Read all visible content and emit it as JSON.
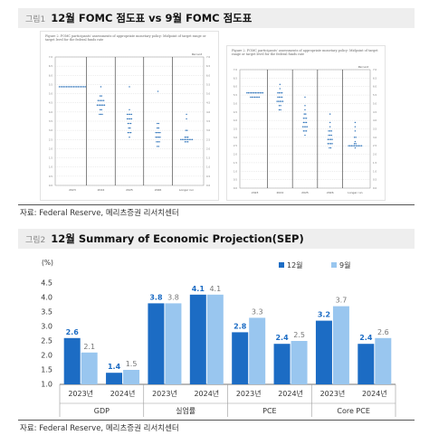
{
  "figure1": {
    "label": "그림1",
    "title": "12월 FOMC 점도표 vs 9월 FOMC 점도표",
    "left_panel": {
      "caption": "Figure 2. FOMC participants' assessments of appropriate monetary policy: Midpoint of target range or target level for the federal funds rate",
      "x_ticks": [
        "2023",
        "2024",
        "2025",
        "2026",
        "Longer run"
      ],
      "y_axis_title": "Percent"
    },
    "right_panel": {
      "caption": "Figure 2. FOMC participants' assessments of appropriate monetary policy: Midpoint of target range or target level for the federal funds rate",
      "x_ticks": [
        "2023",
        "2024",
        "2025",
        "2026",
        "Longer run"
      ],
      "y_axis_title": "Percent"
    },
    "source": "자료: Federal Reserve, 메리츠증권 리서치센터"
  },
  "figure2": {
    "label": "그림2",
    "title": "12월 Summary of Economic Projection(SEP)",
    "source": "자료: Federal Reserve, 메리츠증권 리서치센터"
  },
  "colors": {
    "dec": "#1c6cc4",
    "sep": "#99c6ef",
    "grid": "#bfbfbf",
    "dots": "#2a70b8"
  },
  "chart_data": [
    {
      "type": "scatter",
      "title": "Figure 2. FOMC participants' assessments of appropriate monetary policy (December)",
      "categories": [
        "2023",
        "2024",
        "2025",
        "2026",
        "Longer run"
      ],
      "ylabel": "Percent",
      "points": [
        {
          "x": "2023",
          "y": 5.375,
          "count": 19
        },
        {
          "x": "2024",
          "y": 5.375,
          "count": 1
        },
        {
          "x": "2024",
          "y": 4.875,
          "count": 2
        },
        {
          "x": "2024",
          "y": 4.625,
          "count": 5
        },
        {
          "x": "2024",
          "y": 4.375,
          "count": 6
        },
        {
          "x": "2024",
          "y": 4.125,
          "count": 2
        },
        {
          "x": "2024",
          "y": 3.875,
          "count": 3
        },
        {
          "x": "2025",
          "y": 5.375,
          "count": 1
        },
        {
          "x": "2025",
          "y": 4.125,
          "count": 1
        },
        {
          "x": "2025",
          "y": 3.875,
          "count": 4
        },
        {
          "x": "2025",
          "y": 3.625,
          "count": 4
        },
        {
          "x": "2025",
          "y": 3.375,
          "count": 3
        },
        {
          "x": "2025",
          "y": 3.125,
          "count": 2
        },
        {
          "x": "2025",
          "y": 2.875,
          "count": 3
        },
        {
          "x": "2025",
          "y": 2.625,
          "count": 1
        },
        {
          "x": "2026",
          "y": 5.125,
          "count": 1
        },
        {
          "x": "2026",
          "y": 3.375,
          "count": 2
        },
        {
          "x": "2026",
          "y": 3.125,
          "count": 2
        },
        {
          "x": "2026",
          "y": 2.875,
          "count": 4
        },
        {
          "x": "2026",
          "y": 2.625,
          "count": 4
        },
        {
          "x": "2026",
          "y": 2.375,
          "count": 3
        },
        {
          "x": "2026",
          "y": 2.125,
          "count": 2
        },
        {
          "x": "Longer run",
          "y": 3.875,
          "count": 1
        },
        {
          "x": "Longer run",
          "y": 3.625,
          "count": 1
        },
        {
          "x": "Longer run",
          "y": 3.0,
          "count": 2
        },
        {
          "x": "Longer run",
          "y": 2.625,
          "count": 3
        },
        {
          "x": "Longer run",
          "y": 2.5,
          "count": 9
        },
        {
          "x": "Longer run",
          "y": 2.375,
          "count": 3
        }
      ]
    },
    {
      "type": "scatter",
      "title": "Figure 2. FOMC participants' assessments of appropriate monetary policy (September)",
      "categories": [
        "2023",
        "2024",
        "2025",
        "2026",
        "Longer run"
      ],
      "ylabel": "Percent",
      "points": [
        {
          "x": "2023",
          "y": 5.625,
          "count": 12
        },
        {
          "x": "2023",
          "y": 5.375,
          "count": 7
        },
        {
          "x": "2024",
          "y": 6.125,
          "count": 1
        },
        {
          "x": "2024",
          "y": 5.875,
          "count": 1
        },
        {
          "x": "2024",
          "y": 5.625,
          "count": 4
        },
        {
          "x": "2024",
          "y": 5.375,
          "count": 4
        },
        {
          "x": "2024",
          "y": 5.125,
          "count": 5
        },
        {
          "x": "2024",
          "y": 4.875,
          "count": 2
        },
        {
          "x": "2024",
          "y": 4.625,
          "count": 2
        },
        {
          "x": "2025",
          "y": 5.375,
          "count": 1
        },
        {
          "x": "2025",
          "y": 4.875,
          "count": 1
        },
        {
          "x": "2025",
          "y": 4.625,
          "count": 1
        },
        {
          "x": "2025",
          "y": 4.375,
          "count": 2
        },
        {
          "x": "2025",
          "y": 4.125,
          "count": 3
        },
        {
          "x": "2025",
          "y": 3.875,
          "count": 3
        },
        {
          "x": "2025",
          "y": 3.625,
          "count": 4
        },
        {
          "x": "2025",
          "y": 3.375,
          "count": 3
        },
        {
          "x": "2025",
          "y": 3.125,
          "count": 1
        },
        {
          "x": "2026",
          "y": 4.375,
          "count": 1
        },
        {
          "x": "2026",
          "y": 3.875,
          "count": 1
        },
        {
          "x": "2026",
          "y": 3.625,
          "count": 1
        },
        {
          "x": "2026",
          "y": 3.375,
          "count": 3
        },
        {
          "x": "2026",
          "y": 3.125,
          "count": 3
        },
        {
          "x": "2026",
          "y": 2.875,
          "count": 4
        },
        {
          "x": "2026",
          "y": 2.625,
          "count": 4
        },
        {
          "x": "2026",
          "y": 2.375,
          "count": 2
        },
        {
          "x": "Longer run",
          "y": 3.875,
          "count": 1
        },
        {
          "x": "Longer run",
          "y": 3.625,
          "count": 1
        },
        {
          "x": "Longer run",
          "y": 3.375,
          "count": 1
        },
        {
          "x": "Longer run",
          "y": 3.0,
          "count": 2
        },
        {
          "x": "Longer run",
          "y": 2.75,
          "count": 1
        },
        {
          "x": "Longer run",
          "y": 2.625,
          "count": 2
        },
        {
          "x": "Longer run",
          "y": 2.5,
          "count": 10
        },
        {
          "x": "Longer run",
          "y": 2.375,
          "count": 1
        }
      ]
    },
    {
      "type": "bar",
      "title": "12월 Summary of Economic Projection(SEP)",
      "unit_label": "(%)",
      "ylim": [
        1.0,
        4.5
      ],
      "ytick_step": 0.5,
      "groups": [
        "GDP",
        "실업률",
        "PCE",
        "Core PCE"
      ],
      "categories": [
        "2023년",
        "2024년",
        "2023년",
        "2024년",
        "2023년",
        "2024년",
        "2023년",
        "2024년"
      ],
      "series": [
        {
          "name": "12월",
          "color": "#1c6cc4",
          "values": [
            2.6,
            1.4,
            3.8,
            4.1,
            2.8,
            2.4,
            3.2,
            2.4
          ]
        },
        {
          "name": "9월",
          "color": "#99c6ef",
          "values": [
            2.1,
            1.5,
            3.8,
            4.1,
            3.3,
            2.5,
            3.7,
            2.6
          ]
        }
      ],
      "legend": "top-right",
      "grid": false
    }
  ]
}
